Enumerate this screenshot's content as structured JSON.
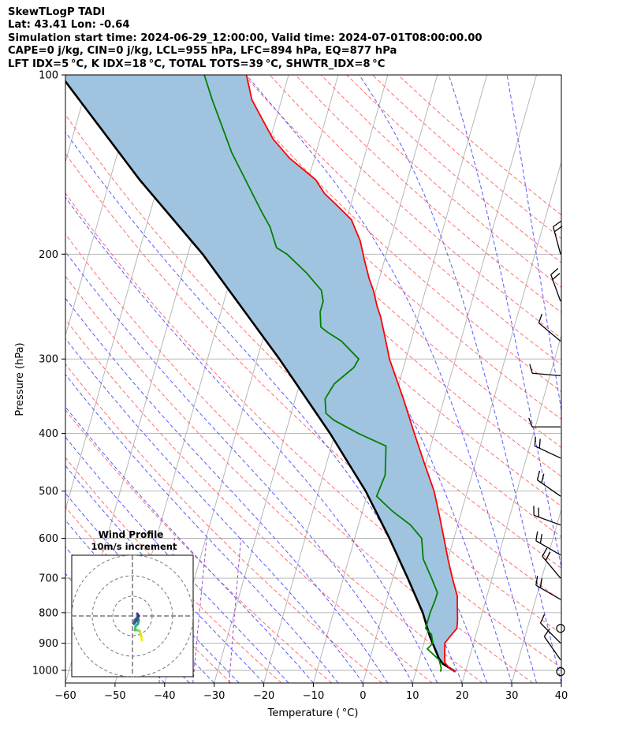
{
  "header": {
    "line1": "SkewTLogP TADI",
    "line2": "Lat: 43.41   Lon: -0.64",
    "line3": "Simulation start time: 2024-06-29_12:00:00, Valid time: 2024-07-01T08:00:00.00",
    "line4": "CAPE=0 j/kg, CIN=0 j/kg, LCL=955 hPa, LFC=894 hPa, EQ=877 hPa",
    "line5": "LFT IDX=5 °C, K IDX=18 °C, TOTAL TOTS=39 °C, SHWTR_IDX=8 °C"
  },
  "chart_data": {
    "type": "line",
    "xlabel": "Temperature ( °C)",
    "ylabel": "Pressure (hPa)",
    "xlim": [
      -60,
      40
    ],
    "ylim": [
      1050,
      100
    ],
    "y_scale": "log",
    "skew": 35,
    "x_ticks": [
      -60,
      -50,
      -40,
      -30,
      -20,
      -10,
      0,
      10,
      20,
      30,
      40
    ],
    "x_tick_labels": [
      "−60",
      "−50",
      "−40",
      "−30",
      "−20",
      "−10",
      "0",
      "10",
      "20",
      "30",
      "40"
    ],
    "y_ticks": [
      1000,
      900,
      800,
      700,
      600,
      500,
      400,
      300,
      200,
      100
    ],
    "y_tick_labels": [
      "1000",
      "900",
      "800",
      "700",
      "600",
      "500",
      "400",
      "300",
      "200",
      "100"
    ],
    "grid": true,
    "colors": {
      "temperature": "#ff0000",
      "dewpoint": "#008000",
      "parcel": "#000000",
      "shading": "#a0c4e0",
      "dry_adiabat": "#ff6f6f",
      "moist_adiabat": "#5a5aff",
      "mixing_ratio": "#9f46c7",
      "isotherm_grid": "#b0b0b0"
    },
    "series": [
      {
        "points": [
          [
            18.0,
            1005
          ],
          [
            16.5,
            990
          ],
          [
            15.3,
            970
          ],
          [
            15.0,
            950
          ],
          [
            14.6,
            925
          ],
          [
            14.2,
            900
          ],
          [
            14.8,
            880
          ],
          [
            15.8,
            850
          ],
          [
            15.4,
            820
          ],
          [
            15.0,
            800
          ],
          [
            14.6,
            780
          ],
          [
            14.0,
            750
          ],
          [
            12.0,
            700
          ],
          [
            10.0,
            650
          ],
          [
            8.0,
            600
          ],
          [
            5.8,
            550
          ],
          [
            3.3,
            500
          ],
          [
            -0.2,
            450
          ],
          [
            -4.0,
            400
          ],
          [
            -8.2,
            350
          ],
          [
            -13.3,
            300
          ],
          [
            -16.0,
            270
          ],
          [
            -17.5,
            255
          ],
          [
            -18.8,
            245
          ],
          [
            -20.5,
            230
          ],
          [
            -22.0,
            220
          ],
          [
            -24.0,
            205
          ],
          [
            -26.0,
            190
          ],
          [
            -29.0,
            175
          ],
          [
            -33.0,
            165
          ],
          [
            -36.0,
            158
          ],
          [
            -38.5,
            150
          ],
          [
            -45.0,
            138
          ],
          [
            -49.5,
            128
          ],
          [
            -53.0,
            118
          ],
          [
            -56.0,
            110
          ],
          [
            -58.5,
            100
          ]
        ]
      },
      {
        "points": [
          [
            15.0,
            1005
          ],
          [
            14.9,
            990
          ],
          [
            14.0,
            960
          ],
          [
            11.0,
            920
          ],
          [
            11.8,
            900
          ],
          [
            11.0,
            870
          ],
          [
            9.5,
            850
          ],
          [
            9.5,
            820
          ],
          [
            9.5,
            800
          ],
          [
            9.8,
            760
          ],
          [
            9.8,
            740
          ],
          [
            7.8,
            700
          ],
          [
            5.0,
            650
          ],
          [
            3.5,
            600
          ],
          [
            0.5,
            570
          ],
          [
            -4.0,
            540
          ],
          [
            -8.0,
            510
          ],
          [
            -7.5,
            470
          ],
          [
            -9.0,
            420
          ],
          [
            -15.3,
            400
          ],
          [
            -21.0,
            380
          ],
          [
            -23.0,
            370
          ],
          [
            -24.0,
            350
          ],
          [
            -23.0,
            330
          ],
          [
            -20.0,
            310
          ],
          [
            -19.5,
            300
          ],
          [
            -24.0,
            280
          ],
          [
            -27.5,
            270
          ],
          [
            -29.0,
            265
          ],
          [
            -30.0,
            250
          ],
          [
            -30.0,
            240
          ],
          [
            -31.0,
            230
          ],
          [
            -35.0,
            215
          ],
          [
            -40.0,
            200
          ],
          [
            -42.5,
            195
          ],
          [
            -45.0,
            180
          ],
          [
            -47.5,
            170
          ],
          [
            -50.0,
            160
          ],
          [
            -57.0,
            135
          ],
          [
            -64.0,
            110
          ],
          [
            -67.0,
            100
          ]
        ]
      },
      {
        "points": [
          [
            18.0,
            1005
          ],
          [
            15.0,
            975
          ],
          [
            13.9,
            955
          ],
          [
            11.5,
            894
          ],
          [
            10.8,
            877
          ],
          [
            8.0,
            800
          ],
          [
            3.0,
            700
          ],
          [
            -3.0,
            600
          ],
          [
            -10.5,
            500
          ],
          [
            -21.0,
            400
          ],
          [
            -35.5,
            300
          ],
          [
            -57.0,
            200
          ],
          [
            -74.0,
            150
          ],
          [
            -96.0,
            100
          ]
        ]
      }
    ],
    "inset": {
      "title": "Wind Profile",
      "subtitle": "10m/s increment"
    }
  }
}
